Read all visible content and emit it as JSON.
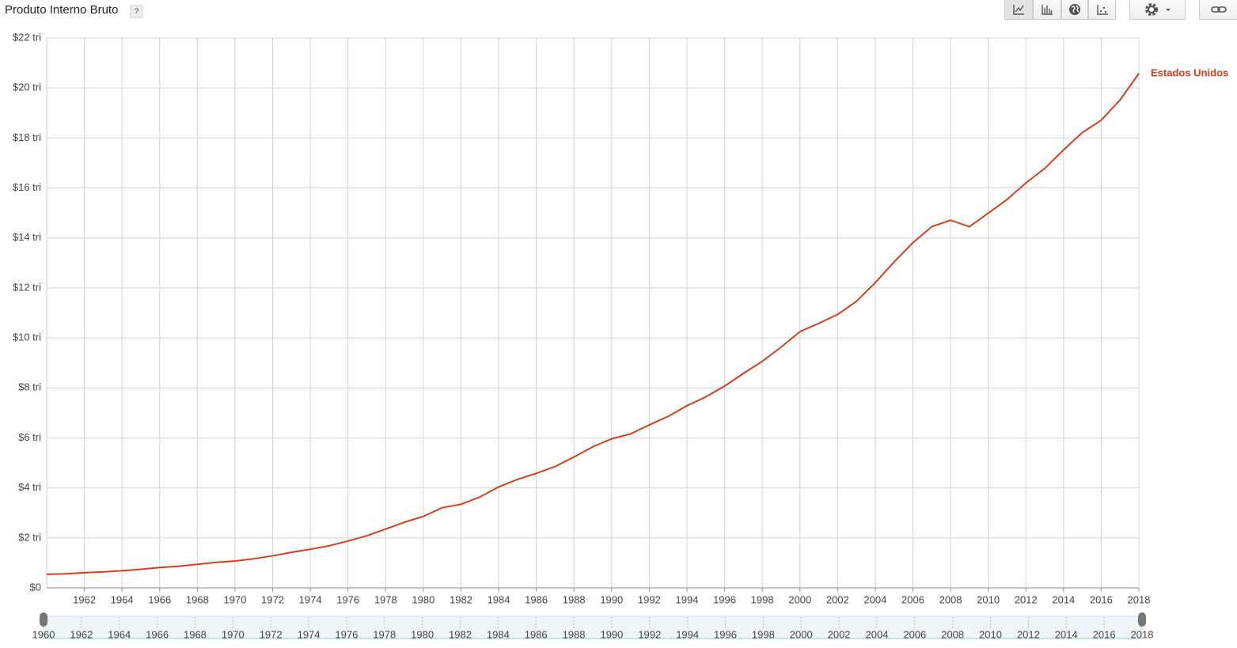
{
  "chart_data": {
    "type": "line",
    "title": "Produto Interno Bruto",
    "help": "?",
    "x": [
      1960,
      1961,
      1962,
      1963,
      1964,
      1965,
      1966,
      1967,
      1968,
      1969,
      1970,
      1971,
      1972,
      1973,
      1974,
      1975,
      1976,
      1977,
      1978,
      1979,
      1980,
      1981,
      1982,
      1983,
      1984,
      1985,
      1986,
      1987,
      1988,
      1989,
      1990,
      1991,
      1992,
      1993,
      1994,
      1995,
      1996,
      1997,
      1998,
      1999,
      2000,
      2001,
      2002,
      2003,
      2004,
      2005,
      2006,
      2007,
      2008,
      2009,
      2010,
      2011,
      2012,
      2013,
      2014,
      2015,
      2016,
      2017,
      2018
    ],
    "series": [
      {
        "name": "Estados Unidos",
        "color": "#d2401c",
        "values": [
          0.543,
          0.563,
          0.605,
          0.639,
          0.686,
          0.744,
          0.815,
          0.862,
          0.943,
          1.019,
          1.073,
          1.165,
          1.28,
          1.425,
          1.545,
          1.684,
          1.873,
          2.082,
          2.352,
          2.627,
          2.857,
          3.207,
          3.343,
          3.634,
          4.037,
          4.339,
          4.58,
          4.855,
          5.236,
          5.642,
          5.963,
          6.158,
          6.52,
          6.859,
          7.287,
          7.64,
          8.073,
          8.578,
          9.063,
          9.631,
          10.25,
          10.58,
          10.94,
          11.46,
          12.21,
          13.04,
          13.81,
          14.45,
          14.71,
          14.45,
          14.99,
          15.54,
          16.2,
          16.78,
          17.52,
          18.22,
          18.71,
          19.52,
          20.58
        ]
      }
    ],
    "xlim": [
      1960,
      2018
    ],
    "xticks": [
      1962,
      1964,
      1966,
      1968,
      1970,
      1972,
      1974,
      1976,
      1978,
      1980,
      1982,
      1984,
      1986,
      1988,
      1990,
      1992,
      1994,
      1996,
      1998,
      2000,
      2002,
      2004,
      2006,
      2008,
      2010,
      2012,
      2014,
      2016,
      2018
    ],
    "ylim": [
      0,
      22
    ],
    "yticks": [
      {
        "value": 0,
        "label": "$0"
      },
      {
        "value": 2,
        "label": "$2 tri"
      },
      {
        "value": 4,
        "label": "$4 tri"
      },
      {
        "value": 6,
        "label": "$6 tri"
      },
      {
        "value": 8,
        "label": "$8 tri"
      },
      {
        "value": 10,
        "label": "$10 tri"
      },
      {
        "value": 12,
        "label": "$12 tri"
      },
      {
        "value": 14,
        "label": "$14 tri"
      },
      {
        "value": 16,
        "label": "$16 tri"
      },
      {
        "value": 18,
        "label": "$18 tri"
      },
      {
        "value": 20,
        "label": "$20 tri"
      },
      {
        "value": 22,
        "label": "$22 tri"
      }
    ],
    "grid": true,
    "timeline": {
      "range": [
        1960,
        2018
      ],
      "ticks": [
        1960,
        1962,
        1964,
        1966,
        1968,
        1970,
        1972,
        1974,
        1976,
        1978,
        1980,
        1982,
        1984,
        1986,
        1988,
        1990,
        1992,
        1994,
        1996,
        1998,
        2000,
        2002,
        2004,
        2006,
        2008,
        2010,
        2012,
        2014,
        2016,
        2018
      ]
    }
  }
}
